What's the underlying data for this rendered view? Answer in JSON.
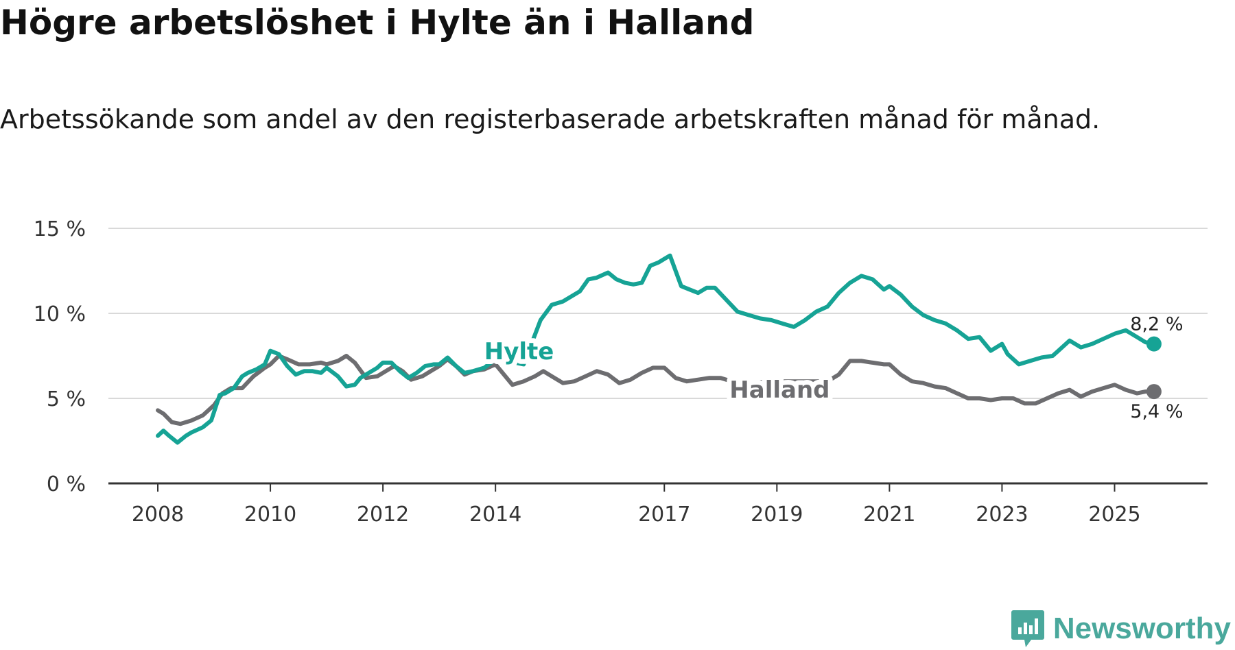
{
  "chart_data": {
    "type": "line",
    "title": "Högre arbetslöshet i Hylte än i Halland",
    "subtitle": "Arbetssökande som andel av den registerbaserade arbetskraften månad för månad.",
    "xlabel": "",
    "ylabel": "",
    "ylim": [
      0,
      15
    ],
    "xlim": [
      2008,
      2025.75
    ],
    "y_ticks": [
      0,
      5,
      10,
      15
    ],
    "y_tick_labels": [
      "0 %",
      "5 %",
      "10 %",
      "15 %"
    ],
    "x_ticks": [
      2008,
      2010,
      2012,
      2014,
      2017,
      2019,
      2021,
      2023,
      2025
    ],
    "x_tick_labels": [
      "2008",
      "2010",
      "2012",
      "2014",
      "2017",
      "2019",
      "2021",
      "2023",
      "2025"
    ],
    "grid": true,
    "series": [
      {
        "name": "Hylte",
        "color": "#16a395",
        "end_label": "8,2 %",
        "x": [
          2008.0,
          2008.1,
          2008.2,
          2008.35,
          2008.5,
          2008.6,
          2008.8,
          2008.95,
          2009.1,
          2009.2,
          2009.35,
          2009.5,
          2009.6,
          2009.75,
          2009.9,
          2010.0,
          2010.15,
          2010.3,
          2010.45,
          2010.6,
          2010.75,
          2010.9,
          2011.0,
          2011.2,
          2011.35,
          2011.5,
          2011.6,
          2011.75,
          2011.9,
          2012.0,
          2012.15,
          2012.3,
          2012.45,
          2012.6,
          2012.75,
          2012.9,
          2013.0,
          2013.15,
          2013.3,
          2013.45,
          2013.6,
          2013.8,
          2014.0,
          2014.2,
          2014.35,
          2014.5,
          2014.65,
          2014.8,
          2015.0,
          2015.2,
          2015.35,
          2015.5,
          2015.65,
          2015.8,
          2016.0,
          2016.15,
          2016.3,
          2016.45,
          2016.6,
          2016.75,
          2016.9,
          2017.0,
          2017.1,
          2017.3,
          2017.45,
          2017.6,
          2017.75,
          2017.9,
          2018.1,
          2018.3,
          2018.5,
          2018.7,
          2018.9,
          2019.1,
          2019.3,
          2019.5,
          2019.7,
          2019.9,
          2020.1,
          2020.3,
          2020.5,
          2020.7,
          2020.9,
          2021.0,
          2021.2,
          2021.4,
          2021.6,
          2021.8,
          2022.0,
          2022.2,
          2022.4,
          2022.6,
          2022.8,
          2023.0,
          2023.1,
          2023.3,
          2023.5,
          2023.7,
          2023.9,
          2024.0,
          2024.2,
          2024.4,
          2024.6,
          2024.8,
          2025.0,
          2025.2,
          2025.4,
          2025.55,
          2025.7
        ],
        "values": [
          2.8,
          3.1,
          2.8,
          2.4,
          2.8,
          3.0,
          3.3,
          3.7,
          5.2,
          5.3,
          5.6,
          6.3,
          6.5,
          6.7,
          7.0,
          7.8,
          7.6,
          6.9,
          6.4,
          6.6,
          6.6,
          6.5,
          6.8,
          6.3,
          5.7,
          5.8,
          6.2,
          6.5,
          6.8,
          7.1,
          7.1,
          6.6,
          6.2,
          6.5,
          6.9,
          7.0,
          7.0,
          7.4,
          6.9,
          6.5,
          6.6,
          6.8,
          7.3,
          7.4,
          7.1,
          7.0,
          8.3,
          9.6,
          10.5,
          10.7,
          11.0,
          11.3,
          12.0,
          12.1,
          12.4,
          12.0,
          11.8,
          11.7,
          11.8,
          12.8,
          13.0,
          13.2,
          13.4,
          11.6,
          11.4,
          11.2,
          11.5,
          11.5,
          10.8,
          10.1,
          9.9,
          9.7,
          9.6,
          9.4,
          9.2,
          9.6,
          10.1,
          10.4,
          11.2,
          11.8,
          12.2,
          12.0,
          11.4,
          11.6,
          11.1,
          10.4,
          9.9,
          9.6,
          9.4,
          9.0,
          8.5,
          8.6,
          7.8,
          8.2,
          7.6,
          7.0,
          7.2,
          7.4,
          7.5,
          7.8,
          8.4,
          8.0,
          8.2,
          8.5,
          8.8,
          9.0,
          8.6,
          8.3,
          8.2
        ]
      },
      {
        "name": "Halland",
        "color": "#6d6d70",
        "end_label": "5,4 %",
        "x": [
          2008.0,
          2008.1,
          2008.25,
          2008.4,
          2008.6,
          2008.8,
          2009.0,
          2009.15,
          2009.3,
          2009.5,
          2009.7,
          2009.9,
          2010.0,
          2010.15,
          2010.3,
          2010.5,
          2010.7,
          2010.9,
          2011.0,
          2011.2,
          2011.35,
          2011.5,
          2011.7,
          2011.9,
          2012.0,
          2012.2,
          2012.35,
          2012.5,
          2012.7,
          2012.9,
          2013.0,
          2013.15,
          2013.3,
          2013.45,
          2013.6,
          2013.8,
          2014.0,
          2014.15,
          2014.3,
          2014.5,
          2014.7,
          2014.85,
          2015.0,
          2015.2,
          2015.4,
          2015.6,
          2015.8,
          2016.0,
          2016.2,
          2016.4,
          2016.6,
          2016.8,
          2017.0,
          2017.2,
          2017.4,
          2017.6,
          2017.8,
          2018.0,
          2018.2,
          2018.4,
          2018.6,
          2018.8,
          2019.0,
          2019.3,
          2019.6,
          2019.9,
          2020.1,
          2020.3,
          2020.5,
          2020.7,
          2020.9,
          2021.0,
          2021.2,
          2021.4,
          2021.6,
          2021.8,
          2022.0,
          2022.2,
          2022.4,
          2022.6,
          2022.8,
          2023.0,
          2023.2,
          2023.4,
          2023.6,
          2023.8,
          2024.0,
          2024.2,
          2024.4,
          2024.6,
          2024.8,
          2025.0,
          2025.2,
          2025.4,
          2025.55,
          2025.7
        ],
        "values": [
          4.3,
          4.1,
          3.6,
          3.5,
          3.7,
          4.0,
          4.6,
          5.3,
          5.6,
          5.6,
          6.3,
          6.8,
          7.0,
          7.5,
          7.3,
          7.0,
          7.0,
          7.1,
          7.0,
          7.2,
          7.5,
          7.1,
          6.2,
          6.3,
          6.5,
          6.9,
          6.6,
          6.1,
          6.3,
          6.7,
          6.9,
          7.3,
          6.9,
          6.4,
          6.6,
          6.7,
          7.0,
          6.4,
          5.8,
          6.0,
          6.3,
          6.6,
          6.3,
          5.9,
          6.0,
          6.3,
          6.6,
          6.4,
          5.9,
          6.1,
          6.5,
          6.8,
          6.8,
          6.2,
          6.0,
          6.1,
          6.2,
          6.2,
          6.0,
          5.7,
          5.9,
          6.0,
          6.0,
          6.0,
          6.0,
          6.0,
          6.4,
          7.2,
          7.2,
          7.1,
          7.0,
          7.0,
          6.4,
          6.0,
          5.9,
          5.7,
          5.6,
          5.3,
          5.0,
          5.0,
          4.9,
          5.0,
          5.0,
          4.7,
          4.7,
          5.0,
          5.3,
          5.5,
          5.1,
          5.4,
          5.6,
          5.8,
          5.5,
          5.3,
          5.4,
          5.4
        ]
      }
    ]
  },
  "branding": {
    "name": "Newsworthy",
    "color": "#4aa89c"
  }
}
